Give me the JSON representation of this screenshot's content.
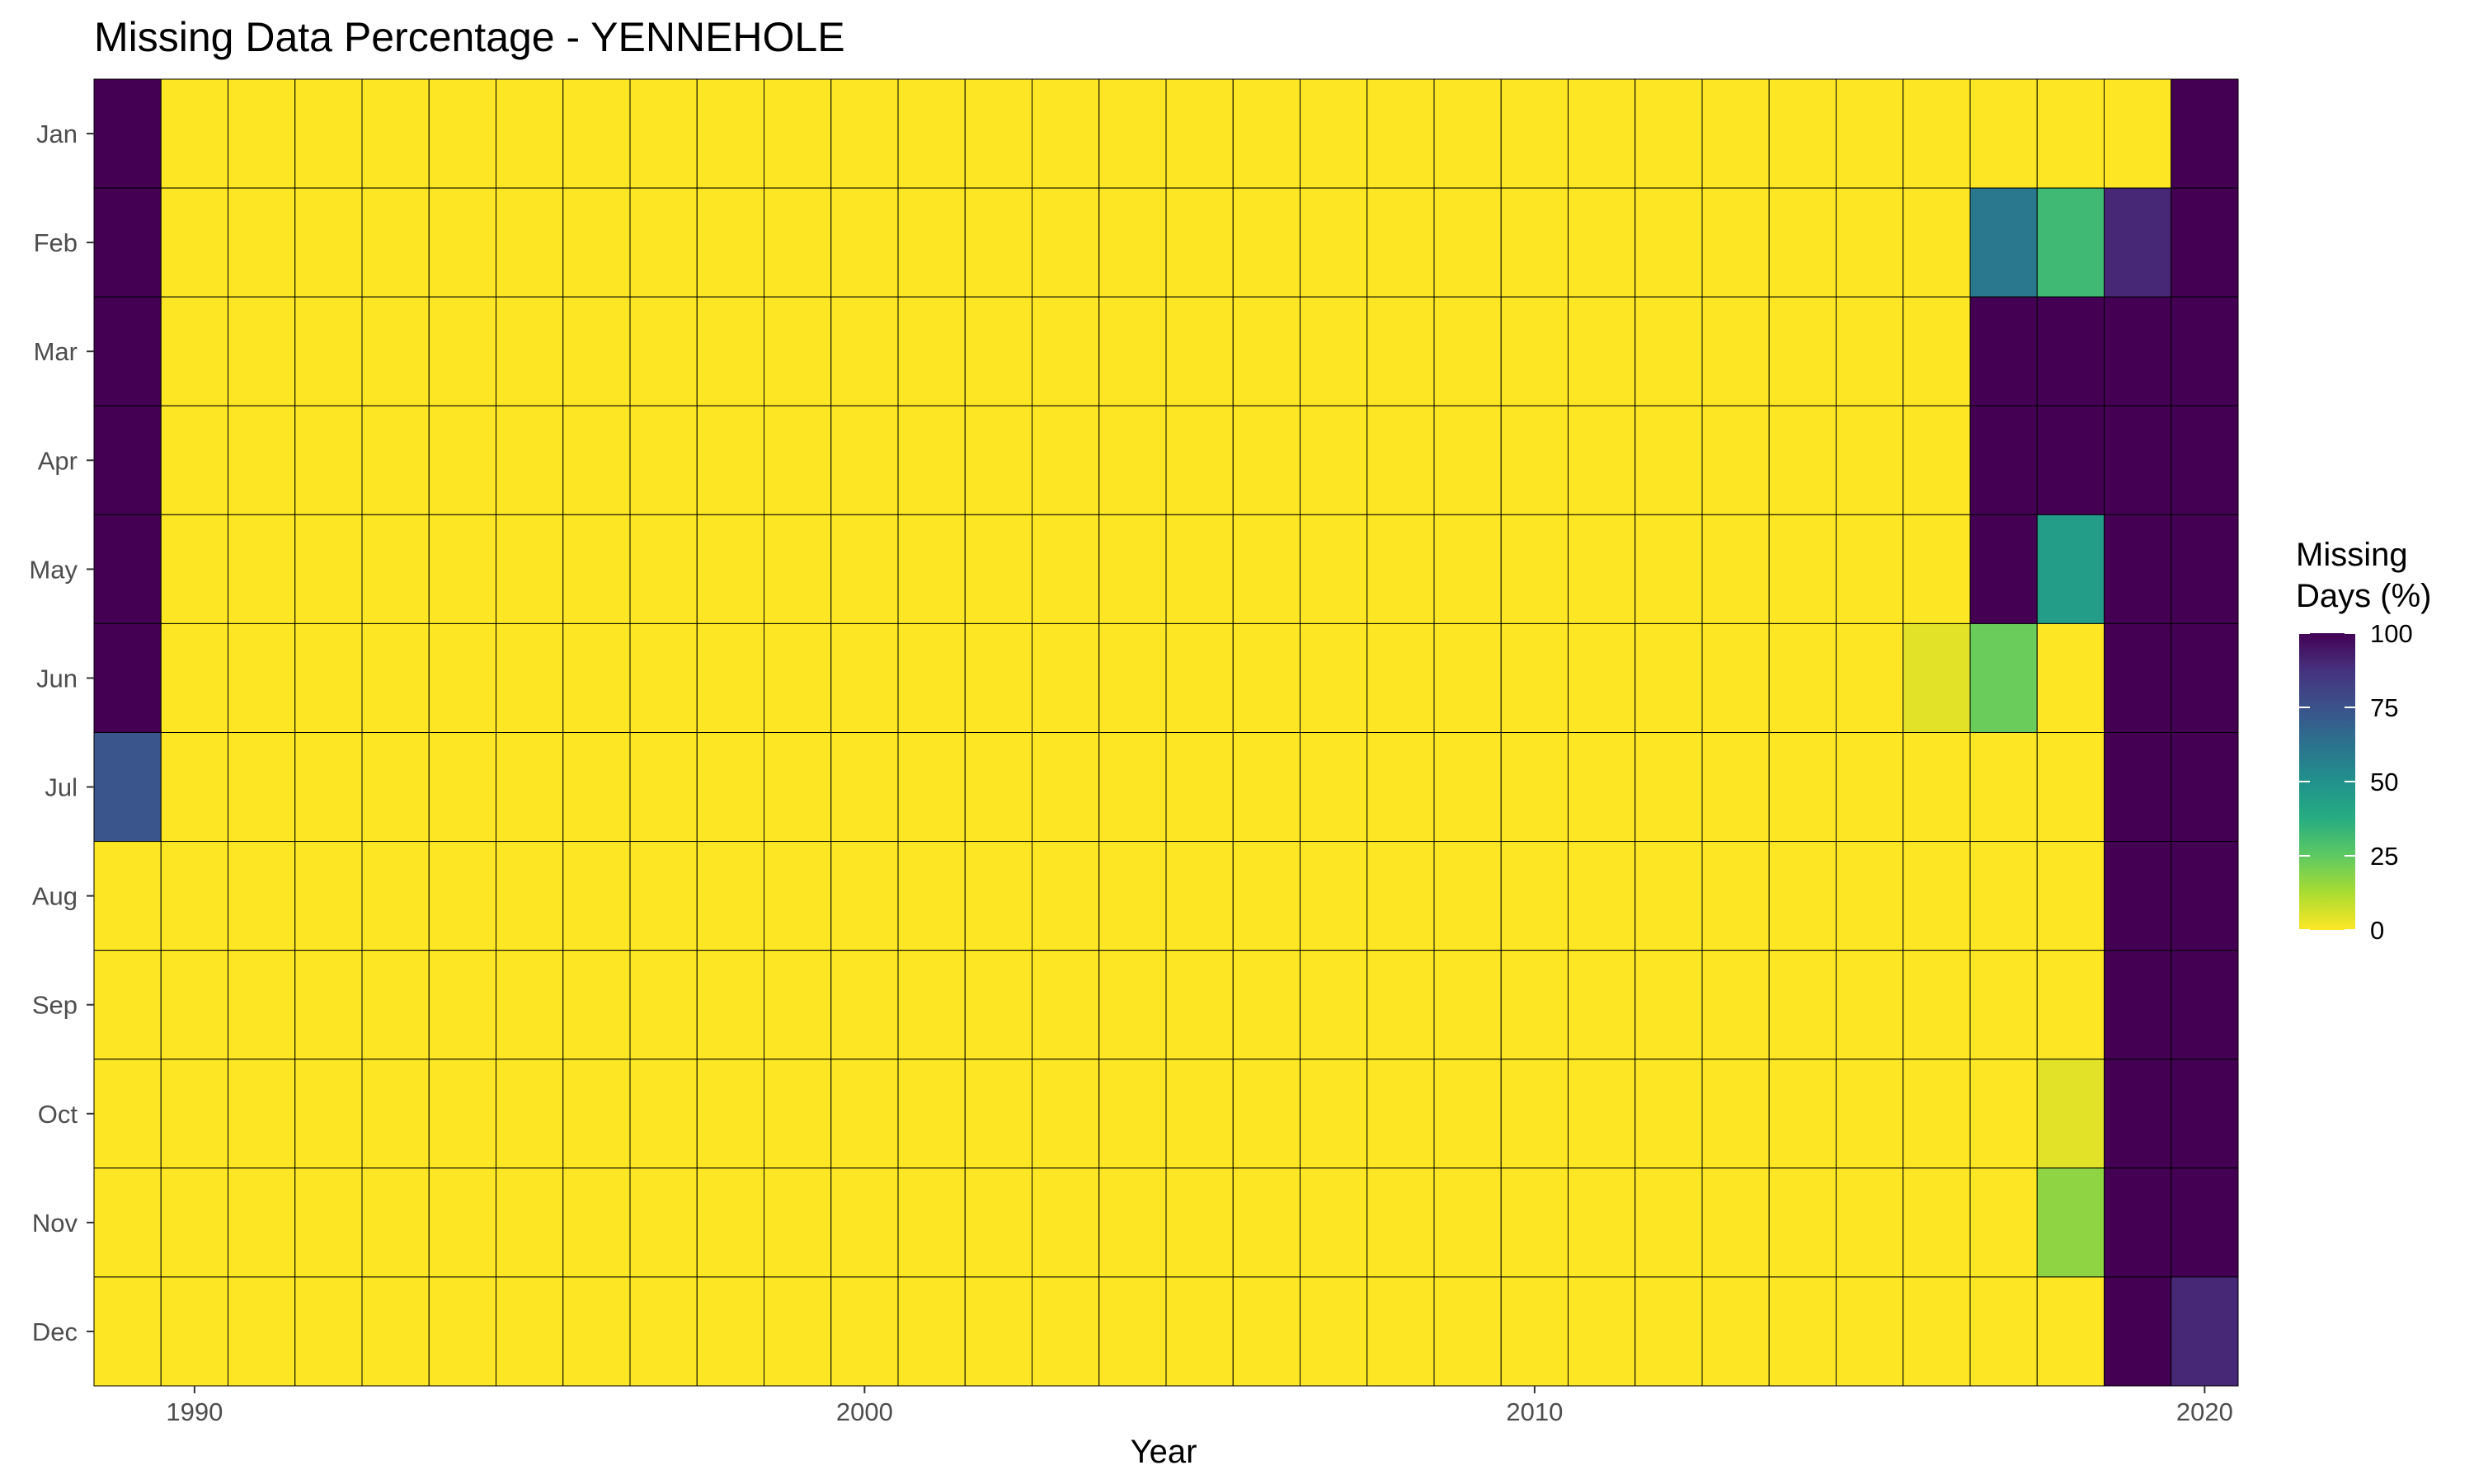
{
  "chart_data": {
    "type": "heatmap",
    "title": "Missing Data Percentage - YENNEHOLE",
    "xlabel": "Year",
    "ylabel": "",
    "years": [
      1989,
      1990,
      1991,
      1992,
      1993,
      1994,
      1995,
      1996,
      1997,
      1998,
      1999,
      2000,
      2001,
      2002,
      2003,
      2004,
      2005,
      2006,
      2007,
      2008,
      2009,
      2010,
      2011,
      2012,
      2013,
      2014,
      2015,
      2016,
      2017,
      2018,
      2019,
      2020
    ],
    "months": [
      "Jan",
      "Feb",
      "Mar",
      "Apr",
      "May",
      "Jun",
      "Jul",
      "Aug",
      "Sep",
      "Oct",
      "Nov",
      "Dec"
    ],
    "x_ticks": [
      1990,
      2000,
      2010,
      2020
    ],
    "x_tick_labels": [
      "1990",
      "2000",
      "2010",
      "2020"
    ],
    "xlim": [
      1988.5,
      2020.5
    ],
    "legend": {
      "title_lines": [
        "Missing",
        "Days (%)"
      ],
      "ticks": [
        100,
        75,
        50,
        25,
        0
      ],
      "tick_labels": [
        "100",
        "75",
        "50",
        "25",
        "0"
      ],
      "range": [
        0,
        100
      ],
      "position": "right",
      "palette": "viridis-reversed"
    },
    "grid": false,
    "cell_border_color": "#000000",
    "default_value": 0,
    "values": [
      {
        "year": 1989,
        "month": "Jan",
        "value": 100
      },
      {
        "year": 1989,
        "month": "Feb",
        "value": 100
      },
      {
        "year": 1989,
        "month": "Mar",
        "value": 100
      },
      {
        "year": 1989,
        "month": "Apr",
        "value": 100
      },
      {
        "year": 1989,
        "month": "May",
        "value": 100
      },
      {
        "year": 1989,
        "month": "Jun",
        "value": 100
      },
      {
        "year": 1989,
        "month": "Jul",
        "value": 74
      },
      {
        "year": 2016,
        "month": "Jun",
        "value": 4
      },
      {
        "year": 2017,
        "month": "Feb",
        "value": 60
      },
      {
        "year": 2017,
        "month": "Mar",
        "value": 100
      },
      {
        "year": 2017,
        "month": "Apr",
        "value": 100
      },
      {
        "year": 2017,
        "month": "May",
        "value": 100
      },
      {
        "year": 2017,
        "month": "Jun",
        "value": 23
      },
      {
        "year": 2018,
        "month": "Feb",
        "value": 32
      },
      {
        "year": 2018,
        "month": "Mar",
        "value": 100
      },
      {
        "year": 2018,
        "month": "Apr",
        "value": 100
      },
      {
        "year": 2018,
        "month": "May",
        "value": 45
      },
      {
        "year": 2018,
        "month": "Oct",
        "value": 4
      },
      {
        "year": 2018,
        "month": "Nov",
        "value": 17
      },
      {
        "year": 2019,
        "month": "Feb",
        "value": 90
      },
      {
        "year": 2019,
        "month": "Mar",
        "value": 100
      },
      {
        "year": 2019,
        "month": "Apr",
        "value": 100
      },
      {
        "year": 2019,
        "month": "May",
        "value": 100
      },
      {
        "year": 2019,
        "month": "Jun",
        "value": 100
      },
      {
        "year": 2019,
        "month": "Jul",
        "value": 100
      },
      {
        "year": 2019,
        "month": "Aug",
        "value": 100
      },
      {
        "year": 2019,
        "month": "Sep",
        "value": 100
      },
      {
        "year": 2019,
        "month": "Oct",
        "value": 100
      },
      {
        "year": 2019,
        "month": "Nov",
        "value": 100
      },
      {
        "year": 2019,
        "month": "Dec",
        "value": 100
      },
      {
        "year": 2020,
        "month": "Jan",
        "value": 100
      },
      {
        "year": 2020,
        "month": "Feb",
        "value": 100
      },
      {
        "year": 2020,
        "month": "Mar",
        "value": 100
      },
      {
        "year": 2020,
        "month": "Apr",
        "value": 100
      },
      {
        "year": 2020,
        "month": "May",
        "value": 100
      },
      {
        "year": 2020,
        "month": "Jun",
        "value": 100
      },
      {
        "year": 2020,
        "month": "Jul",
        "value": 100
      },
      {
        "year": 2020,
        "month": "Aug",
        "value": 100
      },
      {
        "year": 2020,
        "month": "Sep",
        "value": 100
      },
      {
        "year": 2020,
        "month": "Oct",
        "value": 100
      },
      {
        "year": 2020,
        "month": "Nov",
        "value": 100
      },
      {
        "year": 2020,
        "month": "Dec",
        "value": 90
      }
    ]
  }
}
